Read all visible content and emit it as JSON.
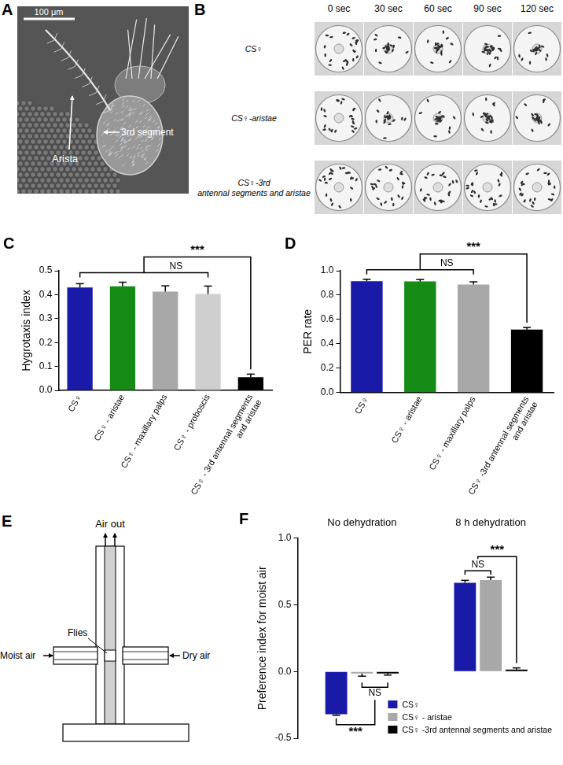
{
  "panels": {
    "A": {
      "panel_label": "A",
      "scale_bar": "100 μm",
      "labels": [
        "Arista",
        "3rd segment"
      ]
    },
    "B": {
      "panel_label": "B",
      "times": [
        "0 sec",
        "30 sec",
        "60 sec",
        "90 sec",
        "120 sec"
      ],
      "rows": [
        [
          "CS♀"
        ],
        [
          "CS♀-aristae"
        ],
        [
          "CS♀-3rd",
          "antennal segments and aristae"
        ]
      ]
    },
    "E": {
      "panel_label": "E",
      "top_label": "Air out",
      "center_label": "Flies",
      "left_label": "Moist air",
      "right_label": "Dry air"
    }
  },
  "chart_data": [
    {
      "panel_label": "C",
      "type": "bar",
      "y_label": "Hygrotaxis index",
      "categories": [
        "CS♀",
        "CS♀ - aristae",
        "CS♀ - maxillary palps",
        "CS♀ - proboscis",
        [
          "CS♀ - 3rd antennal segments",
          "and aristae"
        ]
      ],
      "values": [
        0.43,
        0.435,
        0.413,
        0.403,
        0.055
      ],
      "error": [
        0.016,
        0.017,
        0.024,
        0.033,
        0.013
      ],
      "colors": [
        "#1a1aa8",
        "#168c16",
        "#a8a8a8",
        "#cfcfcf",
        "#000000"
      ],
      "ylim": [
        0,
        0.5
      ],
      "yticks": [
        {
          "value": 0,
          "label": "0.0"
        },
        0.1,
        0.2,
        0.3,
        0.4,
        0.5
      ],
      "grid": false,
      "annotations": [
        "NS",
        "***"
      ]
    },
    {
      "panel_label": "D",
      "type": "bar",
      "y_label": "PER rate",
      "categories": [
        "CS♀",
        "CS♀ - aristae",
        "CS♀ - maxillary palps",
        [
          "CS♀ -3rd antennal segments",
          "and aristae"
        ]
      ],
      "values": [
        0.915,
        0.912,
        0.887,
        0.517
      ],
      "error": [
        0.015,
        0.016,
        0.022,
        0.017
      ],
      "colors": [
        "#1a1aa8",
        "#168c16",
        "#a8a8a8",
        "#000000"
      ],
      "ylim": [
        0,
        1
      ],
      "yticks": [
        {
          "value": 0,
          "label": "0.0"
        },
        0.2,
        0.4,
        0.6,
        0.8,
        {
          "value": 1,
          "label": "1.0"
        }
      ],
      "grid": false,
      "annotations": [
        "NS",
        "***"
      ]
    },
    {
      "panel_label": "F",
      "type": "bar",
      "y_label": "Preference index for moist air",
      "categories": [
        "No dehydration",
        "8 h dehydration"
      ],
      "series": [
        {
          "name": "CS♀",
          "color": "#1a1aa8",
          "values": [
            -0.32,
            0.665
          ],
          "error": [
            0.008,
            0.018
          ]
        },
        {
          "name": "CS♀ - aristae",
          "color": "#a8a8a8",
          "values": [
            -0.015,
            0.685
          ],
          "error": [
            0.02,
            0.022
          ]
        },
        {
          "name": "CS♀ -3rd antennal segments and aristae",
          "color": "#000000",
          "values": [
            -0.015,
            0.015
          ],
          "error": [
            0.012,
            0.012
          ]
        }
      ],
      "ylim": [
        -0.5,
        1
      ],
      "yticks": [
        -0.5,
        {
          "value": 0,
          "label": "0.0"
        },
        0.5,
        {
          "value": 1,
          "label": "1.0"
        }
      ],
      "grid": false,
      "legend": "lower right",
      "annotations": [
        "NS",
        "***",
        "NS",
        "***"
      ]
    }
  ]
}
